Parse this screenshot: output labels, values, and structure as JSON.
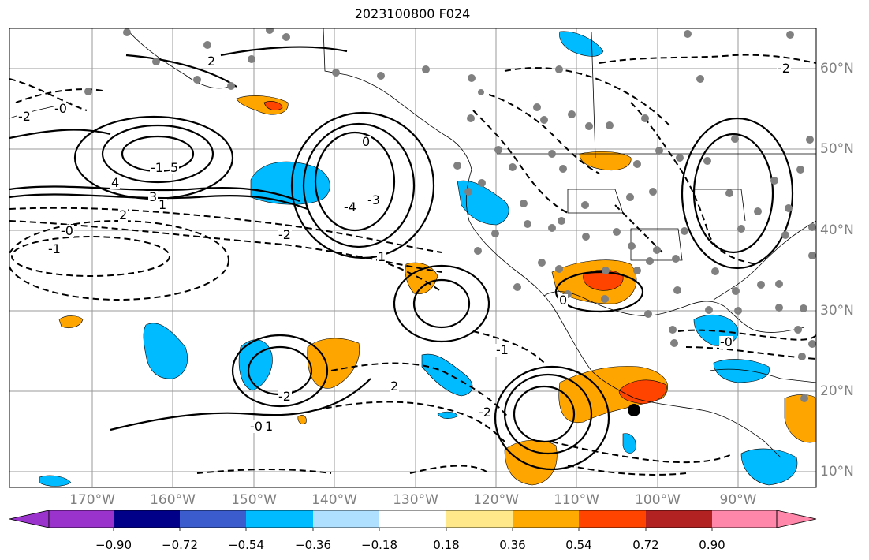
{
  "title": "2023100800 F024",
  "lat_labels": [
    "60°N",
    "50°N",
    "40°N",
    "30°N",
    "20°N",
    "10°N"
  ],
  "lon_labels": [
    "170°W",
    "160°W",
    "150°W",
    "140°W",
    "130°W",
    "120°W",
    "110°W",
    "100°W",
    "90°W"
  ],
  "colorbar": {
    "labels": [
      "−0.90",
      "−0.72",
      "−0.54",
      "−0.36",
      "−0.18",
      "0.18",
      "0.36",
      "0.54",
      "0.72",
      "0.90"
    ],
    "colors": [
      "#9933cc",
      "#000088",
      "#3a5ccc",
      "#00bbff",
      "#b0e0ff",
      "#ffffff",
      "#ffe88a",
      "#ffaa00",
      "#ff4400",
      "#b22222",
      "#ff88aa"
    ]
  },
  "contour_labels": [
    "-2",
    "2",
    "-1",
    "5",
    "4",
    "3",
    "1",
    "-0",
    "0",
    "-3",
    "-4",
    "-2",
    "2",
    "-0",
    "-1",
    "1",
    "-2",
    "-0",
    "1",
    "-1",
    "0",
    "-2",
    "2",
    "-2",
    "-0"
  ],
  "fill_colors": {
    "blue": "#00bbff",
    "orange": "#ffa500",
    "red": "#ff4400"
  },
  "marker_color": "#000000",
  "station_color": "#808080"
}
